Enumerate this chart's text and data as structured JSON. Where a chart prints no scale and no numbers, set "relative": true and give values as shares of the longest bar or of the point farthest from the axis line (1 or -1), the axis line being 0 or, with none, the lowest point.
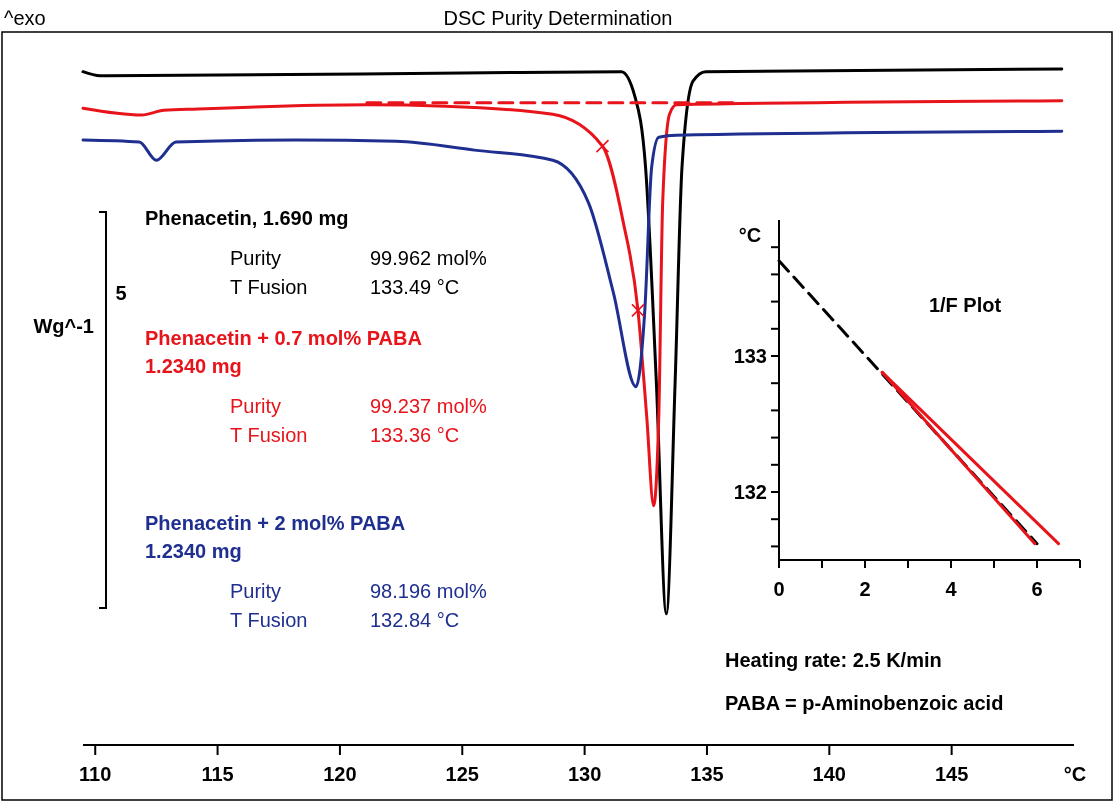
{
  "chart_data": [
    {
      "type": "line",
      "title": "DSC Purity Determination",
      "xlabel": "°C",
      "ylabel": "Wg^-1",
      "relative": true,
      "xlim": [
        109.5,
        150
      ],
      "xticks": [
        110,
        115,
        120,
        125,
        130,
        135,
        140,
        145
      ],
      "legend": "left",
      "annotations": [
        "Purity",
        "99.962 mol%",
        "T Fusion",
        "133.49 °C",
        "Purity",
        "99.237 mol%",
        "T Fusion",
        "133.36 °C",
        "Purity",
        "98.196 mol%",
        "T Fusion",
        "132.84 °C",
        "^exo",
        "5",
        "Heating rate: 2.5 K/min",
        "PABA = p-Aminobenzoic acid"
      ],
      "series": [
        {
          "name": "Phenacetin, 1.690 mg",
          "color": "#000000",
          "x": [
            109.5,
            110.2,
            125,
            131.5,
            132.05,
            132.49,
            132.93,
            133.34,
            133.7,
            133.98,
            134.43,
            134.95,
            149.5
          ],
          "values": [
            0.996,
            0.99,
            0.994,
            0.996,
            0.96,
            0.855,
            0.538,
            0.194,
            0.538,
            0.855,
            0.982,
            0.996,
            1.0
          ]
        },
        {
          "name": "Phenacetin + 0.7 mol% PABA\n1.2340 mg",
          "color": "#e8141b",
          "x": [
            109.5,
            111.9,
            112.8,
            114.2,
            121.1,
            124.3,
            128.7,
            130.73,
            131.57,
            132.18,
            132.54,
            132.82,
            133.03,
            133.19,
            133.47,
            133.75,
            149.5
          ],
          "values": [
            0.942,
            0.932,
            0.939,
            0.941,
            0.947,
            0.945,
            0.933,
            0.886,
            0.775,
            0.643,
            0.485,
            0.354,
            0.485,
            0.802,
            0.933,
            0.947,
            0.953
          ]
        },
        {
          "name": "Phenacetin + 2 mol% PABA\n1.2340 mg",
          "color": "#1f2f8f",
          "x": [
            109.5,
            111.8,
            112.5,
            113.3,
            118.2,
            122.3,
            125.5,
            128.7,
            130.16,
            131.17,
            132.1,
            132.46,
            132.74,
            133.03,
            133.75,
            149.5
          ],
          "values": [
            0.895,
            0.892,
            0.865,
            0.892,
            0.895,
            0.893,
            0.88,
            0.865,
            0.802,
            0.67,
            0.53,
            0.643,
            0.855,
            0.899,
            0.902,
            0.908
          ]
        },
        {
          "type": "line",
          "line_style": "dashed",
          "color": "#e8141b",
          "x": [
            121.1,
            136.17
          ],
          "values": [
            0.95,
            0.95
          ]
        },
        {
          "type": "scatter",
          "marker": "cross",
          "color": "#e8141b",
          "x": [
            130.73,
            132.18
          ],
          "values": [
            0.886,
            0.643
          ]
        }
      ]
    },
    {
      "type": "line",
      "title": "1/F Plot",
      "ylabel": "°C",
      "xlim": [
        0,
        7
      ],
      "ylim": [
        131.5,
        134
      ],
      "xticks": [
        0,
        {
          "value": 1,
          "label": null
        },
        2,
        {
          "value": 3,
          "label": null
        },
        4,
        {
          "value": 5,
          "label": null
        },
        6,
        {
          "value": 7,
          "label": null
        }
      ],
      "yticks": [
        {
          "value": 131.6,
          "label": null
        },
        {
          "value": 131.8,
          "label": null
        },
        132,
        {
          "value": 132.2,
          "label": null
        },
        {
          "value": 132.4,
          "label": null
        },
        {
          "value": 132.6,
          "label": null
        },
        {
          "value": 132.8,
          "label": null
        },
        133,
        {
          "value": 133.2,
          "label": null
        },
        {
          "value": 133.4,
          "label": null
        },
        {
          "value": 133.6,
          "label": null
        },
        {
          "value": 133.8,
          "label": null
        }
      ],
      "series": [
        {
          "line_style": "dashed",
          "color": "#000000",
          "x": [
            0,
            6
          ],
          "values": [
            133.7,
            131.62
          ]
        },
        {
          "color": "#e8141b",
          "x": [
            2.4,
            6.5
          ],
          "values": [
            132.88,
            131.62
          ]
        },
        {
          "color": "#e8141b",
          "x": [
            2.4,
            5.95
          ],
          "values": [
            132.88,
            131.62
          ]
        }
      ]
    }
  ]
}
